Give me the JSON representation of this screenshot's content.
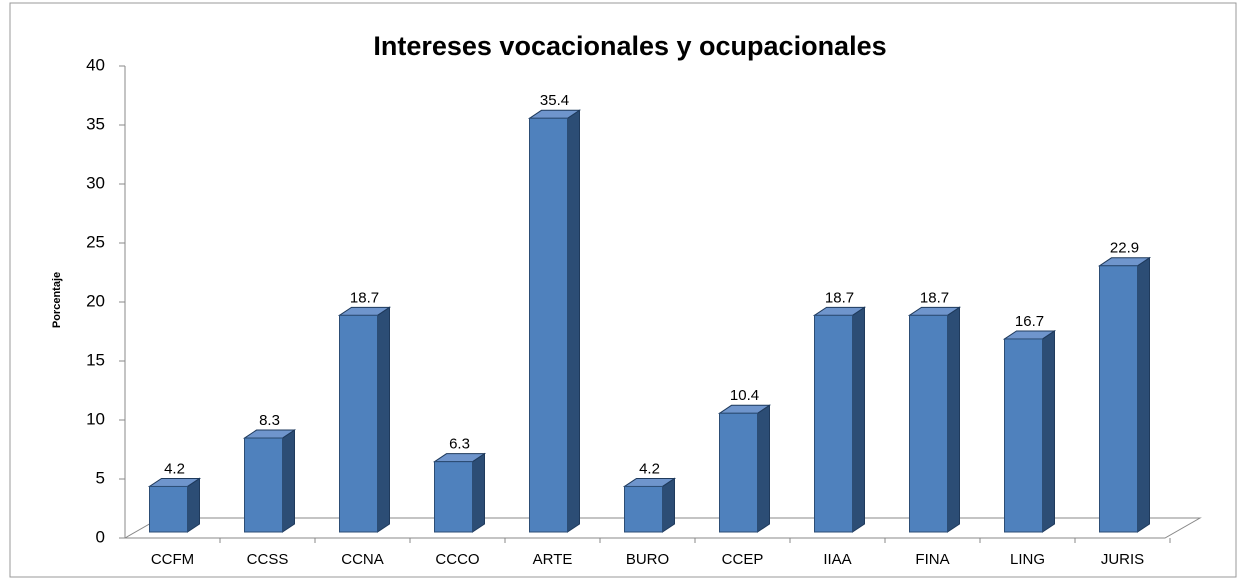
{
  "chart_data": {
    "type": "bar3d",
    "title": "Intereses vocacionales y ocupacionales",
    "y_label": "Porcentaje",
    "categories": [
      "CCFM",
      "CCSS",
      "CCNA",
      "CCCO",
      "ARTE",
      "BURO",
      "CCEP",
      "IIAA",
      "FINA",
      "LING",
      "JURIS"
    ],
    "values": [
      4.2,
      8.3,
      18.7,
      6.3,
      35.4,
      4.2,
      10.4,
      18.7,
      18.7,
      16.7,
      22.9
    ],
    "color": "#4f81bd",
    "ylim": [
      0,
      40
    ],
    "yticks": [
      0,
      5,
      10,
      15,
      20,
      25,
      30,
      35,
      40
    ],
    "grid": false
  }
}
